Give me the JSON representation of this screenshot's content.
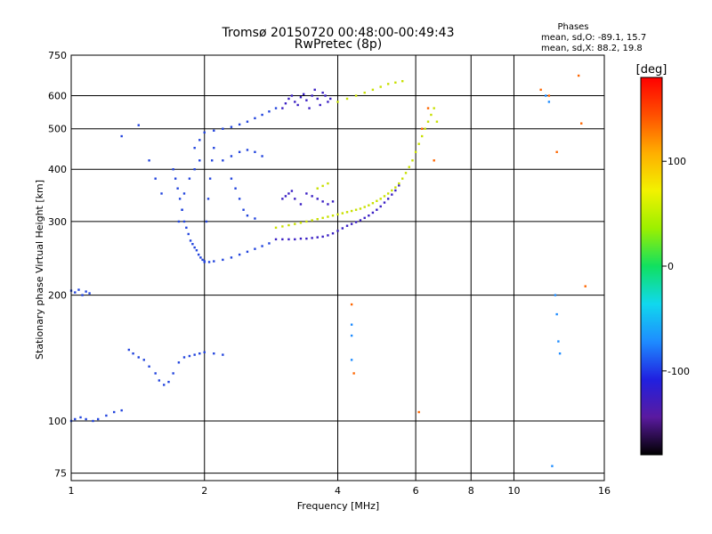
{
  "chart_data": {
    "type": "scatter",
    "title": "Tromsø 20150720 00:48:00-00:49:43",
    "subtitle": "RwPretec (8p)",
    "xlabel": "Frequency [MHz]",
    "ylabel": "Stationary phase Virtual Height [km]",
    "x_scale": "log",
    "y_scale": "log",
    "xlim": [
      1,
      16
    ],
    "ylim": [
      72,
      750
    ],
    "x_ticks": [
      1,
      2,
      4,
      6,
      8,
      10,
      16
    ],
    "y_ticks": [
      75,
      100,
      200,
      300,
      400,
      500,
      600,
      750
    ],
    "grid": true,
    "stats": {
      "title": "Phases",
      "line_o": "mean, sd,O: -89.1, 15.7",
      "line_x": "mean, sd,X:  88.2, 19.8"
    },
    "colorbar": {
      "label": "[deg]",
      "range": [
        -180,
        180
      ],
      "ticks": [
        -100,
        0,
        100
      ],
      "colors": [
        "#000000",
        "#5a1aa0",
        "#2020e0",
        "#1e8cff",
        "#10d8ee",
        "#10e060",
        "#9cf000",
        "#f2f200",
        "#ffae00",
        "#ff5000",
        "#ff0000"
      ]
    },
    "series": [
      {
        "color": "#2244dd",
        "points": [
          [
            1.0,
            205
          ],
          [
            1.02,
            203
          ],
          [
            1.04,
            206
          ],
          [
            1.06,
            200
          ],
          [
            1.08,
            204
          ],
          [
            1.1,
            202
          ],
          [
            1.0,
            100
          ],
          [
            1.02,
            101
          ],
          [
            1.05,
            102
          ],
          [
            1.08,
            101
          ],
          [
            1.12,
            100
          ],
          [
            1.15,
            101
          ],
          [
            1.2,
            103
          ],
          [
            1.25,
            105
          ],
          [
            1.3,
            106
          ],
          [
            1.35,
            148
          ],
          [
            1.38,
            145
          ],
          [
            1.42,
            142
          ],
          [
            1.46,
            140
          ],
          [
            1.5,
            135
          ],
          [
            1.55,
            130
          ],
          [
            1.58,
            125
          ],
          [
            1.62,
            122
          ],
          [
            1.66,
            124
          ],
          [
            1.7,
            130
          ],
          [
            1.75,
            138
          ],
          [
            1.8,
            142
          ],
          [
            1.85,
            143
          ],
          [
            1.9,
            144
          ],
          [
            1.95,
            145
          ],
          [
            2.0,
            146
          ],
          [
            2.1,
            145
          ],
          [
            2.2,
            144
          ],
          [
            1.3,
            480
          ],
          [
            1.42,
            510
          ],
          [
            1.5,
            420
          ],
          [
            1.55,
            380
          ],
          [
            1.6,
            350
          ],
          [
            1.7,
            400
          ],
          [
            1.72,
            380
          ],
          [
            1.74,
            360
          ],
          [
            1.76,
            340
          ],
          [
            1.78,
            320
          ],
          [
            1.8,
            300
          ],
          [
            1.82,
            290
          ],
          [
            1.84,
            280
          ],
          [
            1.86,
            270
          ],
          [
            1.88,
            265
          ],
          [
            1.9,
            260
          ],
          [
            1.92,
            256
          ],
          [
            1.94,
            250
          ],
          [
            1.96,
            246
          ],
          [
            1.98,
            243
          ],
          [
            2.0,
            241
          ],
          [
            2.05,
            240
          ],
          [
            2.1,
            241
          ],
          [
            2.2,
            243
          ],
          [
            2.3,
            246
          ],
          [
            2.4,
            250
          ],
          [
            2.5,
            254
          ],
          [
            2.6,
            258
          ],
          [
            2.7,
            262
          ],
          [
            2.8,
            266
          ],
          [
            1.75,
            300
          ],
          [
            1.78,
            320
          ],
          [
            1.8,
            350
          ],
          [
            1.85,
            380
          ],
          [
            1.9,
            400
          ],
          [
            1.95,
            420
          ],
          [
            1.9,
            450
          ],
          [
            1.95,
            470
          ],
          [
            2.0,
            490
          ],
          [
            2.1,
            495
          ],
          [
            2.2,
            500
          ],
          [
            2.3,
            505
          ],
          [
            2.4,
            512
          ],
          [
            2.5,
            520
          ],
          [
            2.6,
            530
          ],
          [
            2.7,
            540
          ],
          [
            2.8,
            550
          ],
          [
            2.9,
            560
          ],
          [
            2.0,
            240
          ],
          [
            2.02,
            300
          ],
          [
            2.04,
            340
          ],
          [
            2.06,
            380
          ],
          [
            2.08,
            420
          ],
          [
            2.1,
            450
          ],
          [
            2.2,
            420
          ],
          [
            2.3,
            430
          ],
          [
            2.4,
            440
          ],
          [
            2.5,
            445
          ],
          [
            2.6,
            440
          ],
          [
            2.7,
            430
          ],
          [
            2.3,
            380
          ],
          [
            2.35,
            360
          ],
          [
            2.4,
            340
          ],
          [
            2.45,
            320
          ],
          [
            2.5,
            310
          ],
          [
            2.6,
            305
          ]
        ]
      },
      {
        "color": "#3a1fc4",
        "points": [
          [
            2.9,
            272
          ],
          [
            3.0,
            272
          ],
          [
            3.1,
            272
          ],
          [
            3.2,
            272
          ],
          [
            3.3,
            273
          ],
          [
            3.4,
            273
          ],
          [
            3.5,
            274
          ],
          [
            3.6,
            275
          ],
          [
            3.7,
            276
          ],
          [
            3.8,
            278
          ],
          [
            3.9,
            281
          ],
          [
            4.0,
            285
          ],
          [
            4.1,
            289
          ],
          [
            4.2,
            293
          ],
          [
            4.3,
            296
          ],
          [
            4.4,
            299
          ],
          [
            4.5,
            302
          ],
          [
            4.6,
            306
          ],
          [
            4.7,
            310
          ],
          [
            4.8,
            315
          ],
          [
            4.9,
            320
          ],
          [
            5.0,
            326
          ],
          [
            5.1,
            333
          ],
          [
            5.2,
            340
          ],
          [
            5.3,
            348
          ],
          [
            5.4,
            356
          ],
          [
            5.5,
            366
          ],
          [
            3.0,
            560
          ],
          [
            3.05,
            575
          ],
          [
            3.1,
            590
          ],
          [
            3.15,
            600
          ],
          [
            3.2,
            580
          ],
          [
            3.25,
            570
          ],
          [
            3.3,
            595
          ],
          [
            3.35,
            605
          ],
          [
            3.4,
            585
          ],
          [
            3.45,
            560
          ],
          [
            3.5,
            600
          ],
          [
            3.55,
            620
          ],
          [
            3.6,
            590
          ],
          [
            3.65,
            570
          ],
          [
            3.7,
            610
          ],
          [
            3.75,
            600
          ],
          [
            3.8,
            580
          ],
          [
            3.85,
            590
          ],
          [
            3.0,
            340
          ],
          [
            3.05,
            345
          ],
          [
            3.1,
            350
          ],
          [
            3.15,
            355
          ],
          [
            3.2,
            340
          ],
          [
            3.3,
            330
          ],
          [
            3.4,
            350
          ],
          [
            3.5,
            345
          ],
          [
            3.6,
            340
          ],
          [
            3.7,
            335
          ],
          [
            3.8,
            330
          ],
          [
            3.9,
            335
          ]
        ]
      },
      {
        "color": "#c8e000",
        "points": [
          [
            2.9,
            290
          ],
          [
            3.0,
            292
          ],
          [
            3.1,
            294
          ],
          [
            3.2,
            296
          ],
          [
            3.3,
            298
          ],
          [
            3.4,
            300
          ],
          [
            3.5,
            302
          ],
          [
            3.6,
            304
          ],
          [
            3.7,
            306
          ],
          [
            3.8,
            308
          ],
          [
            3.9,
            310
          ],
          [
            4.0,
            312
          ],
          [
            4.1,
            314
          ],
          [
            4.2,
            316
          ],
          [
            4.3,
            318
          ],
          [
            4.4,
            320
          ],
          [
            4.5,
            322
          ],
          [
            4.6,
            325
          ],
          [
            4.7,
            328
          ],
          [
            4.8,
            332
          ],
          [
            4.9,
            336
          ],
          [
            5.0,
            340
          ],
          [
            5.1,
            345
          ],
          [
            5.2,
            350
          ],
          [
            5.3,
            356
          ],
          [
            5.4,
            362
          ],
          [
            5.5,
            370
          ],
          [
            5.6,
            380
          ],
          [
            5.7,
            392
          ],
          [
            5.8,
            405
          ],
          [
            5.9,
            420
          ],
          [
            6.0,
            440
          ],
          [
            6.1,
            460
          ],
          [
            6.2,
            480
          ],
          [
            4.0,
            580
          ],
          [
            4.2,
            590
          ],
          [
            4.4,
            600
          ],
          [
            4.6,
            610
          ],
          [
            4.8,
            620
          ],
          [
            5.0,
            630
          ],
          [
            5.2,
            640
          ],
          [
            5.4,
            645
          ],
          [
            5.6,
            650
          ],
          [
            6.3,
            500
          ],
          [
            6.4,
            520
          ],
          [
            6.5,
            540
          ],
          [
            6.6,
            560
          ],
          [
            6.7,
            520
          ],
          [
            3.6,
            360
          ],
          [
            3.7,
            365
          ],
          [
            3.8,
            370
          ]
        ]
      },
      {
        "color": "#ff6600",
        "points": [
          [
            6.1,
            105
          ],
          [
            6.2,
            500
          ],
          [
            6.4,
            560
          ],
          [
            6.6,
            420
          ],
          [
            11.5,
            620
          ],
          [
            12.0,
            600
          ],
          [
            12.5,
            440
          ],
          [
            14.0,
            670
          ],
          [
            14.2,
            515
          ],
          [
            14.5,
            210
          ],
          [
            4.3,
            190
          ],
          [
            4.35,
            130
          ]
        ]
      },
      {
        "color": "#1e8cff",
        "points": [
          [
            4.3,
            170
          ],
          [
            4.3,
            140
          ],
          [
            4.3,
            160
          ],
          [
            11.8,
            600
          ],
          [
            12.0,
            580
          ],
          [
            12.4,
            200
          ],
          [
            12.5,
            180
          ],
          [
            12.6,
            155
          ],
          [
            12.7,
            145
          ],
          [
            12.2,
            78
          ]
        ]
      }
    ]
  }
}
